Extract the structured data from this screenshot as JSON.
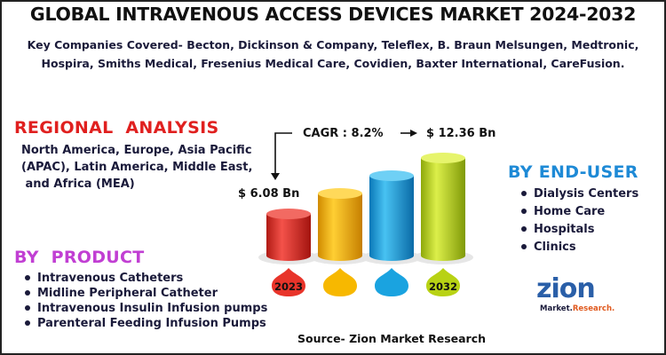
{
  "title": "GLOBAL INTRAVENOUS ACCESS DEVICES MARKET 2024-2032",
  "companies": {
    "line1": "Key Companies Covered- Becton, Dickinson & Company, Teleflex, B. Braun Melsungen, Medtronic,",
    "line2": "Hospira, Smiths Medical, Fresenius Medical Care, Covidien, Baxter International, CareFusion."
  },
  "regional": {
    "heading": "REGIONAL  ANALYSIS",
    "line1": "North America, Europe, Asia Pacific",
    "line2": "(APAC), Latin America, Middle East,",
    "line3": " and Africa (MEA)"
  },
  "product": {
    "heading": "BY  PRODUCT",
    "items": [
      "Intravenous Catheters",
      "Midline Peripheral Catheter",
      "Intravenous Insulin Infusion pumps",
      "Parenteral Feeding Infusion Pumps"
    ]
  },
  "end_user": {
    "heading": "BY END-USER",
    "items": [
      "Dialysis Centers",
      "Home Care",
      "Hospitals",
      "Clinics"
    ]
  },
  "market": {
    "cagr": "CAGR : 8.2%",
    "start_value": "$ 6.08 Bn",
    "end_value": "$ 12.36 Bn",
    "start_year": "2023",
    "end_year": "2032"
  },
  "source": "Source- Zion Market Research",
  "logo": {
    "mark": "zion",
    "sub_a": "Market.",
    "sub_b": "Research."
  },
  "colors": {
    "regional_heading": "#e0201f",
    "product_heading": "#c13fd3",
    "enduser_heading": "#1e8ad6",
    "cylinder_red": "#e8342a",
    "cylinder_yellow": "#f7b800",
    "cylinder_blue": "#1aa3e0",
    "cylinder_green": "#b8d214"
  }
}
